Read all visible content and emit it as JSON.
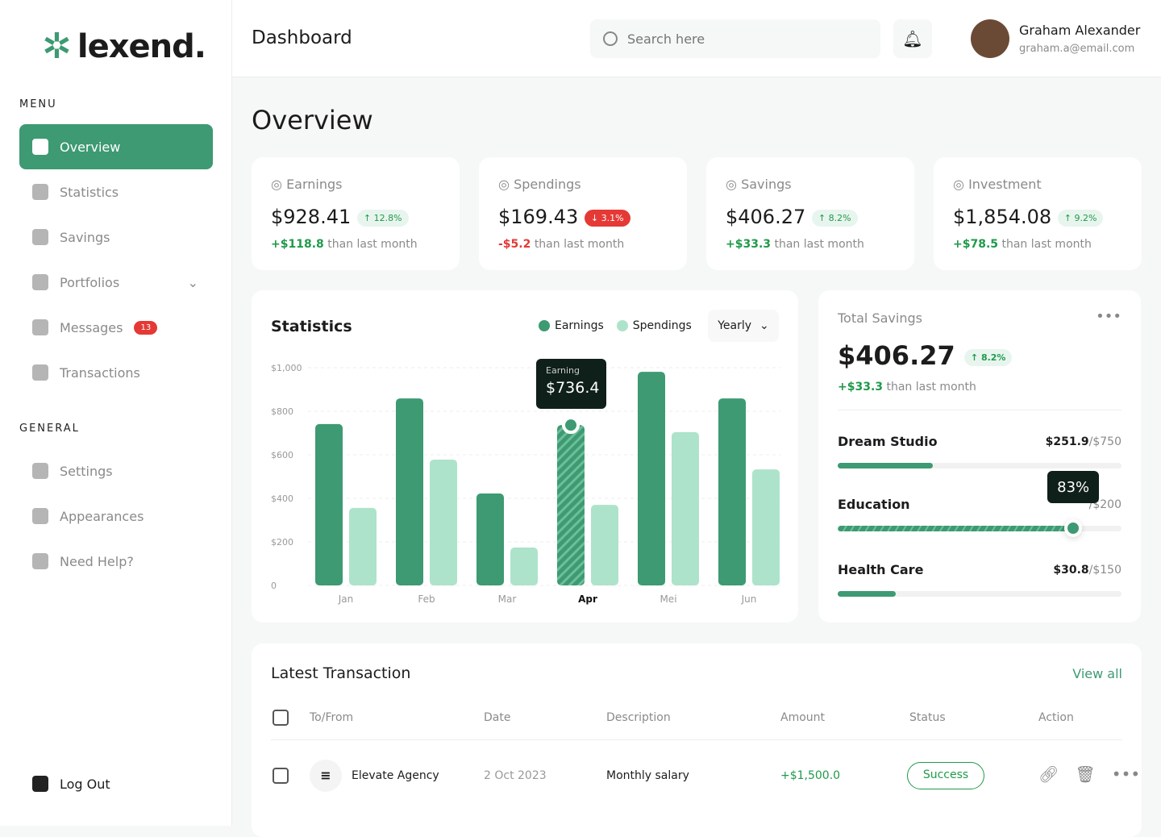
{
  "brand": {
    "name": "lexend.",
    "color": "#3d9a72"
  },
  "sidebar": {
    "menu_label": "MENU",
    "general_label": "GENERAL",
    "menu": [
      {
        "label": "Overview",
        "icon": "grid-icon",
        "active": true
      },
      {
        "label": "Statistics",
        "icon": "chart-icon"
      },
      {
        "label": "Savings",
        "icon": "wallet-icon"
      },
      {
        "label": "Portfolios",
        "icon": "pie-icon",
        "chevron": true
      },
      {
        "label": "Messages",
        "icon": "mail-icon",
        "badge": "13"
      },
      {
        "label": "Transactions",
        "icon": "document-icon"
      }
    ],
    "general": [
      {
        "label": "Settings",
        "icon": "gear-icon"
      },
      {
        "label": "Appearances",
        "icon": "image-icon"
      },
      {
        "label": "Need Help?",
        "icon": "info-icon"
      }
    ],
    "logout": "Log Out"
  },
  "header": {
    "title": "Dashboard",
    "search_placeholder": "Search here",
    "user": {
      "name": "Graham Alexander",
      "email": "graham.a@email.com"
    }
  },
  "page_title": "Overview",
  "stats": [
    {
      "label": "Earnings",
      "icon": "dollar-icon",
      "value": "$928.41",
      "change": "12.8%",
      "dir": "up",
      "delta": "+$118.8",
      "delta_text": "than last month"
    },
    {
      "label": "Spendings",
      "icon": "cart-icon",
      "value": "$169.43",
      "change": "3.1%",
      "dir": "down",
      "delta": "-$5.2",
      "delta_text": "than last month"
    },
    {
      "label": "Savings",
      "icon": "piggy-icon",
      "value": "$406.27",
      "change": "8.2%",
      "dir": "up",
      "delta": "+$33.3",
      "delta_text": "than last month"
    },
    {
      "label": "Investment",
      "icon": "presentation-icon",
      "value": "$1,854.08",
      "change": "9.2%",
      "dir": "up",
      "delta": "+$78.5",
      "delta_text": "than last month"
    }
  ],
  "statistics": {
    "title": "Statistics",
    "period": "Yearly",
    "tooltip": {
      "label": "Earning",
      "value": "$736.4"
    }
  },
  "chart_data": {
    "type": "bar",
    "categories": [
      "Jan",
      "Feb",
      "Mar",
      "Apr",
      "Mei",
      "Jun"
    ],
    "highlight": "Apr",
    "ylim": [
      0,
      1000
    ],
    "yticks": [
      "0",
      "$200",
      "$400",
      "$600",
      "$800",
      "$1,000"
    ],
    "grid": true,
    "legend": "top-right",
    "series": [
      {
        "name": "Earnings",
        "color": "#3d9a72",
        "values": [
          741,
          859,
          422,
          736.4,
          981,
          859
        ]
      },
      {
        "name": "Spendings",
        "color": "#aee3cb",
        "values": [
          356,
          578,
          174,
          370,
          704,
          533
        ]
      }
    ]
  },
  "total_savings": {
    "title": "Total Savings",
    "value": "$406.27",
    "change": "8.2%",
    "delta": "+$33.3",
    "delta_text": "than last month",
    "goals": [
      {
        "name": "Dream Studio",
        "amount": "$251.9",
        "target": "/$750",
        "percent": 33.6
      },
      {
        "name": "Education",
        "amount": "",
        "target": "/$200",
        "percent": 83,
        "tooltip": "83%"
      },
      {
        "name": "Health Care",
        "amount": "$30.8",
        "target": "/$150",
        "percent": 20.5
      }
    ]
  },
  "transactions": {
    "title": "Latest Transaction",
    "view_all": "View all",
    "columns": [
      "To/From",
      "Date",
      "Description",
      "Amount",
      "Status",
      "Action"
    ],
    "rows": [
      {
        "name": "Elevate Agency",
        "date": "2 Oct 2023",
        "description": "Monthly salary",
        "amount": "+$1,500.0",
        "status": "Success"
      }
    ]
  }
}
